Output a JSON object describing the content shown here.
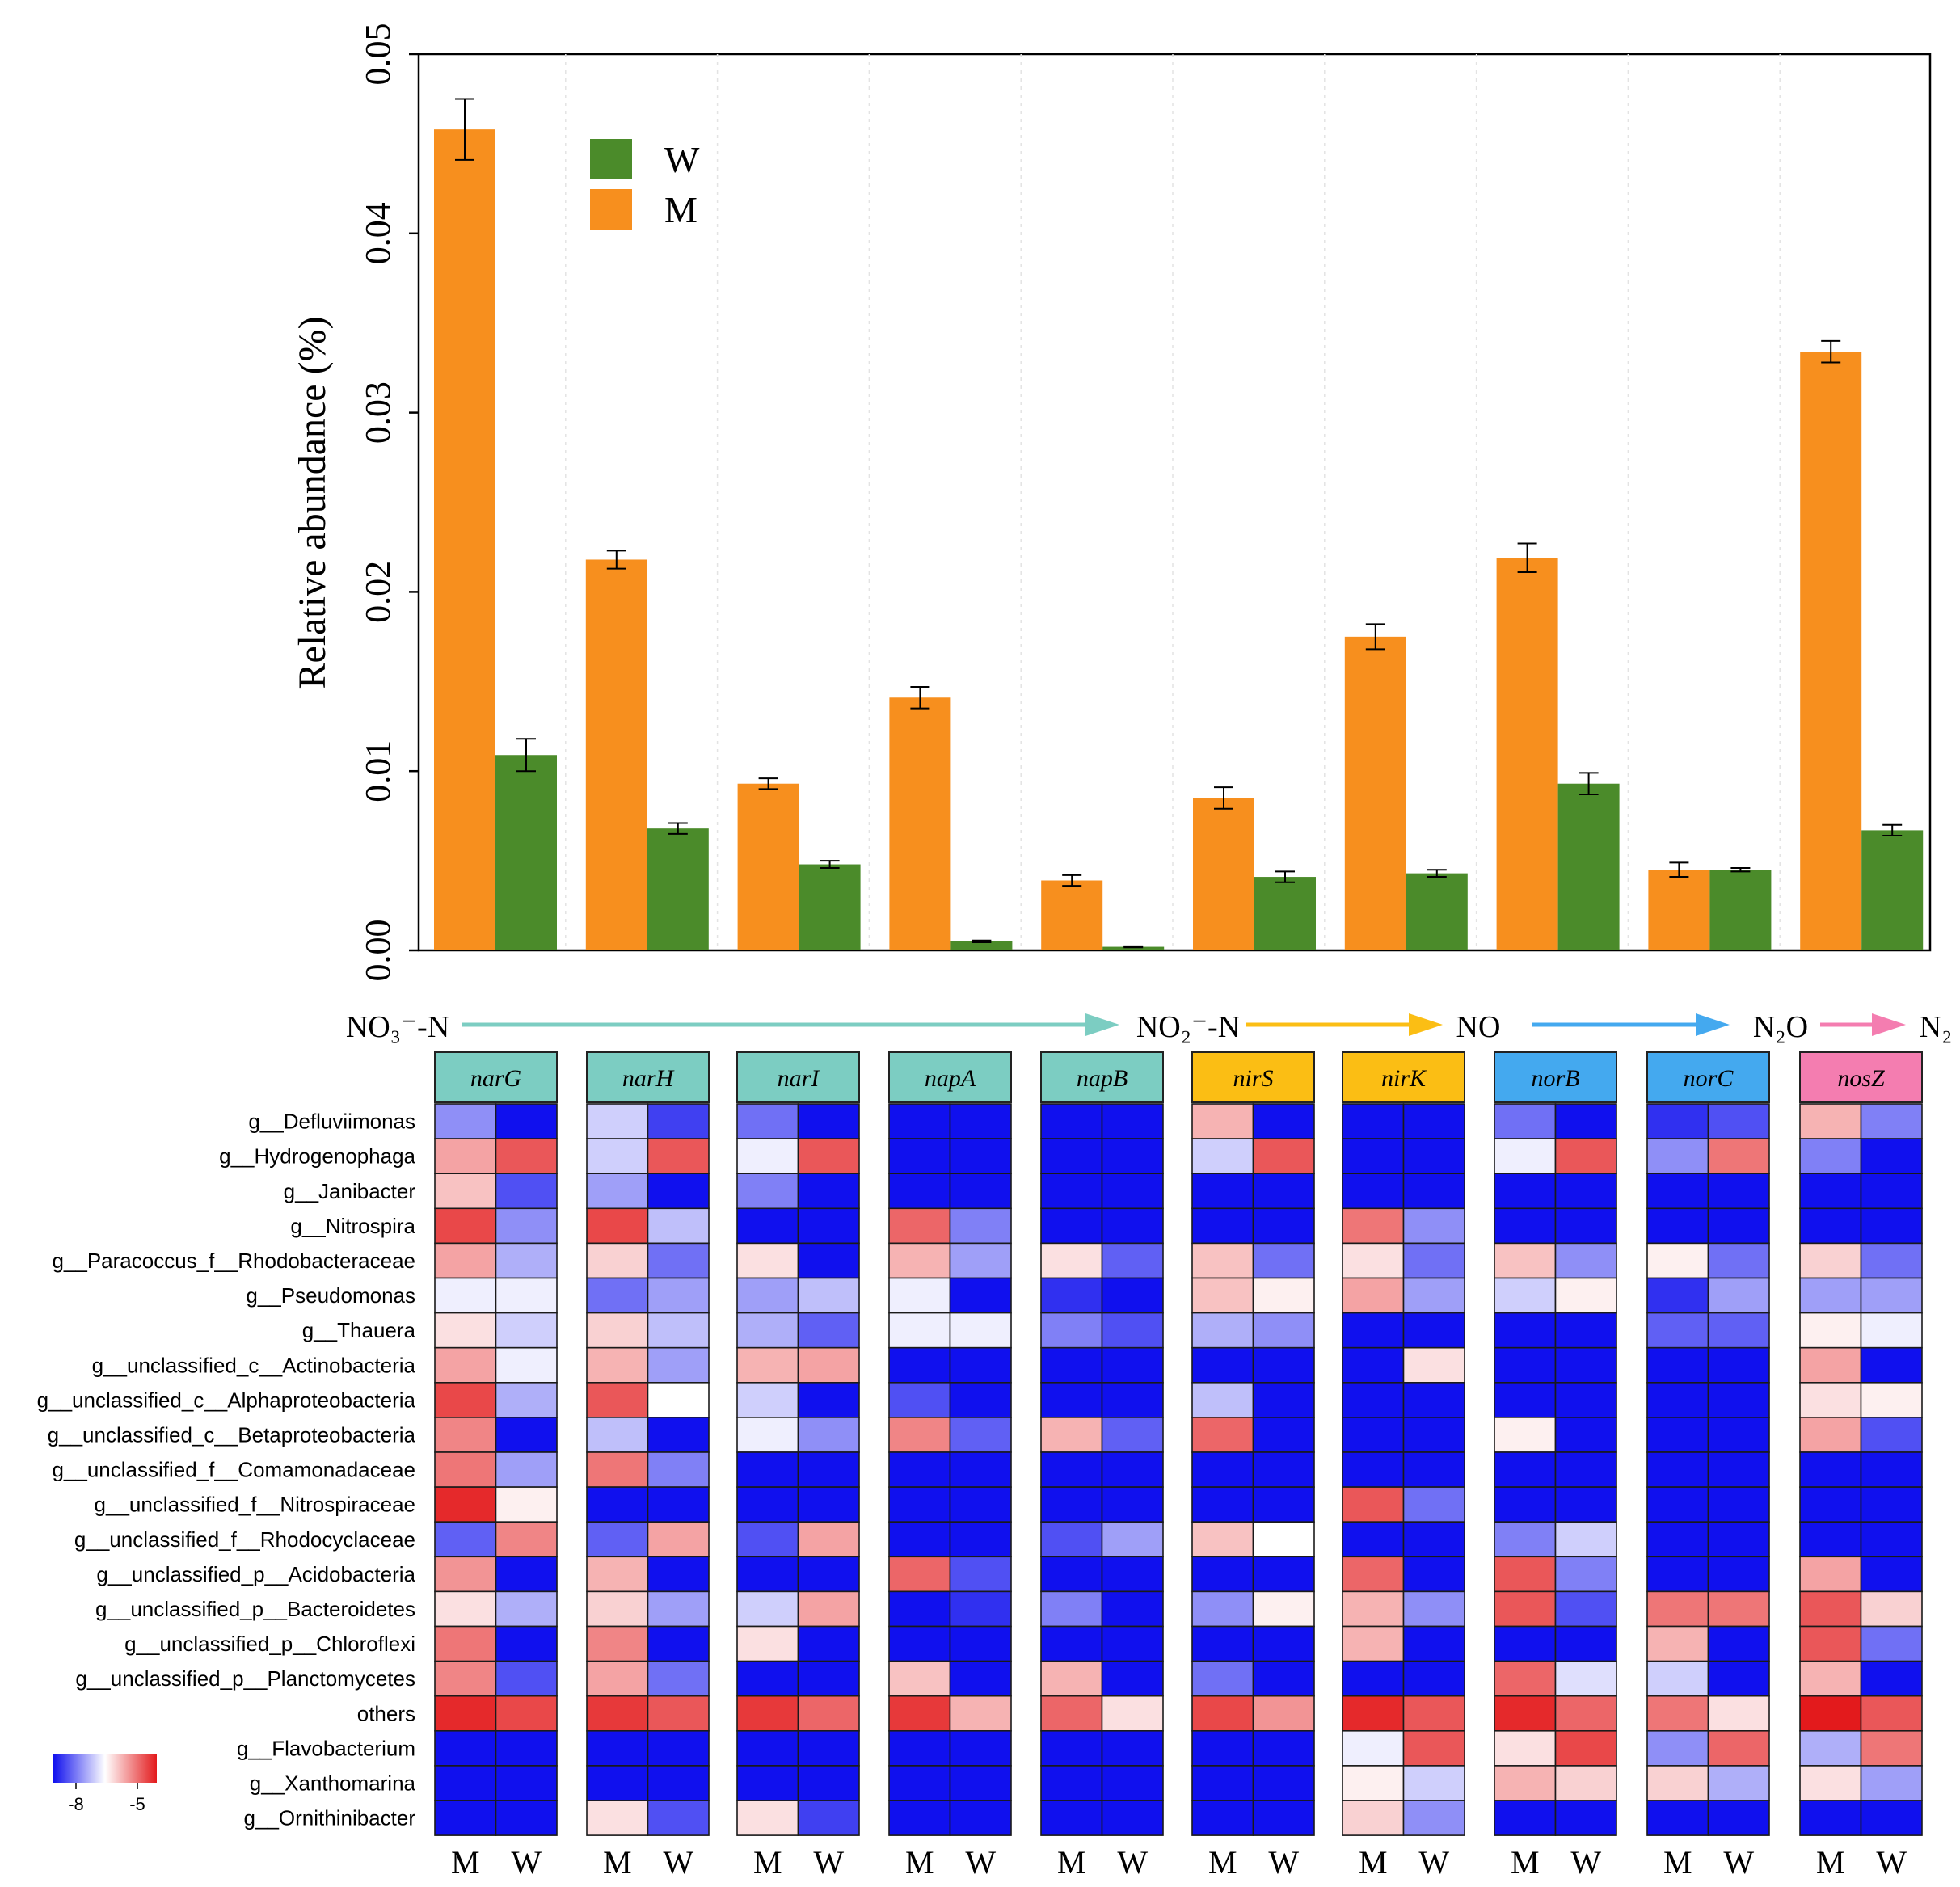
{
  "chart_data": [
    {
      "type": "bar",
      "ylabel": "Relative abundance (%)",
      "ylim": [
        0,
        0.05
      ],
      "yticks": [
        "0.00",
        "0.01",
        "0.02",
        "0.03",
        "0.04",
        "0.05"
      ],
      "categories": [
        "narG",
        "narH",
        "narI",
        "napA",
        "napB",
        "nirS",
        "nirK",
        "norB",
        "norC",
        "nosZ"
      ],
      "series": [
        {
          "name": "M",
          "color": "#f78f1e",
          "values": [
            0.0458,
            0.0218,
            0.0093,
            0.0141,
            0.0039,
            0.0085,
            0.0175,
            0.0219,
            0.0045,
            0.0334
          ],
          "errors": [
            0.0017,
            0.0005,
            0.0003,
            0.0006,
            0.0003,
            0.0006,
            0.0007,
            0.0008,
            0.0004,
            0.0006
          ]
        },
        {
          "name": "W",
          "color": "#4b8b2a",
          "values": [
            0.0109,
            0.0068,
            0.0048,
            0.0005,
            0.0002,
            0.0041,
            0.0043,
            0.0093,
            0.0045,
            0.0067
          ],
          "errors": [
            0.0009,
            0.0003,
            0.0002,
            5e-05,
            3e-05,
            0.0003,
            0.0002,
            0.0006,
            0.0001,
            0.0003
          ]
        }
      ],
      "legend": {
        "position": "top-left",
        "entries": [
          "W",
          "M"
        ]
      }
    },
    {
      "type": "heatmap",
      "genes": [
        {
          "label": "narG",
          "color": "#7ccdc2"
        },
        {
          "label": "narH",
          "color": "#7ccdc2"
        },
        {
          "label": "narI",
          "color": "#7ccdc2"
        },
        {
          "label": "napA",
          "color": "#7ccdc2"
        },
        {
          "label": "napB",
          "color": "#7ccdc2"
        },
        {
          "label": "nirS",
          "color": "#fbbe14"
        },
        {
          "label": "nirK",
          "color": "#fbbe14"
        },
        {
          "label": "norB",
          "color": "#44a9ef"
        },
        {
          "label": "norC",
          "color": "#44a9ef"
        },
        {
          "label": "nosZ",
          "color": "#f47db0"
        }
      ],
      "columns": [
        "M",
        "W"
      ],
      "rows": [
        "g__Defluviimonas",
        "g__Hydrogenophaga",
        "g__Janibacter",
        "g__Nitrospira",
        "g__Paracoccus_f__Rhodobacteraceae",
        "g__Pseudomonas",
        "g__Thauera",
        "g__unclassified_c__Actinobacteria",
        "g__unclassified_c__Alphaproteobacteria",
        "g__unclassified_c__Betaproteobacteria",
        "g__unclassified_f__Comamonadaceae",
        "g__unclassified_f__Nitrospiraceae",
        "g__unclassified_f__Rhodocyclaceae",
        "g__unclassified_p__Acidobacteria",
        "g__unclassified_p__Bacteroidetes",
        "g__unclassified_p__Chloroflexi",
        "g__unclassified_p__Planctomycetes",
        "others",
        "g__Flavobacterium",
        "g__Xanthomarina",
        "g__Ornithinibacter"
      ],
      "values": [
        [
          [
            -7.2,
            -8
          ],
          [
            -5.9,
            -5.4
          ],
          [
            -6.1,
            -7.6
          ],
          [
            -5.3,
            -7.2
          ],
          [
            -5.9,
            -7.0
          ],
          [
            -6.6,
            -6.6
          ],
          [
            -6.3,
            -6.8
          ],
          [
            -5.9,
            -6.6
          ],
          [
            -5.3,
            -7.0
          ],
          [
            -5.7,
            -8
          ],
          [
            -5.6,
            -7.1
          ],
          [
            -5.1,
            -6.4
          ],
          [
            -7.5,
            -5.7
          ],
          [
            -5.8,
            -8
          ],
          [
            -6.3,
            -7.0
          ],
          [
            -5.6,
            -8
          ],
          [
            -5.7,
            -7.6
          ],
          [
            -5.1,
            -5.3
          ],
          [
            -8,
            -8
          ],
          [
            -8,
            -8
          ],
          [
            -8,
            -8
          ]
        ],
        [
          [
            -6.8,
            -7.7
          ],
          [
            -6.8,
            -5.4
          ],
          [
            -7.1,
            -8
          ],
          [
            -5.3,
            -6.9
          ],
          [
            -6.2,
            -7.4
          ],
          [
            -7.4,
            -7.1
          ],
          [
            -6.2,
            -6.9
          ],
          [
            -6.0,
            -7.1
          ],
          [
            -5.4,
            -6.5
          ],
          [
            -6.9,
            -8
          ],
          [
            -5.6,
            -7.3
          ],
          [
            -8,
            -8
          ],
          [
            -7.5,
            -5.9
          ],
          [
            -6.0,
            -8
          ],
          [
            -6.2,
            -7.1
          ],
          [
            -5.7,
            -8
          ],
          [
            -5.9,
            -7.4
          ],
          [
            -5.2,
            -5.4
          ],
          [
            -8,
            -8
          ],
          [
            -8,
            -8
          ],
          [
            -6.3,
            -7.6
          ]
        ],
        [
          [
            -7.4,
            -8
          ],
          [
            -6.6,
            -5.4
          ],
          [
            -7.3,
            -8
          ],
          [
            -8,
            -8
          ],
          [
            -6.3,
            -8
          ],
          [
            -7.1,
            -6.9
          ],
          [
            -7.0,
            -7.5
          ],
          [
            -6.0,
            -5.9
          ],
          [
            -6.8,
            -8
          ],
          [
            -6.6,
            -7.2
          ],
          [
            -8,
            -8
          ],
          [
            -8,
            -8
          ],
          [
            -7.6,
            -5.9
          ],
          [
            -8,
            -8
          ],
          [
            -6.8,
            -5.9
          ],
          [
            -6.3,
            -8
          ],
          [
            -8,
            -8
          ],
          [
            -5.2,
            -5.5
          ],
          [
            -8,
            -8
          ],
          [
            -8,
            -8
          ],
          [
            -6.3,
            -7.7
          ]
        ],
        [
          [
            -8,
            -8
          ],
          [
            -8,
            -8
          ],
          [
            -8,
            -8
          ],
          [
            -5.5,
            -7.3
          ],
          [
            -6.0,
            -7.1
          ],
          [
            -6.6,
            -8
          ],
          [
            -6.6,
            -6.6
          ],
          [
            -8,
            -8
          ],
          [
            -7.6,
            -8
          ],
          [
            -5.7,
            -7.5
          ],
          [
            -8,
            -8
          ],
          [
            -8,
            -8
          ],
          [
            -8,
            -8
          ],
          [
            -5.5,
            -7.6
          ],
          [
            -8,
            -7.8
          ],
          [
            -8,
            -8
          ],
          [
            -6.1,
            -8
          ],
          [
            -5.2,
            -6.0
          ],
          [
            -8,
            -8
          ],
          [
            -8,
            -8
          ],
          [
            -8,
            -8
          ]
        ],
        [
          [
            -8,
            -8
          ],
          [
            -8,
            -8
          ],
          [
            -8,
            -8
          ],
          [
            -8,
            -8
          ],
          [
            -6.3,
            -7.5
          ],
          [
            -7.8,
            -8
          ],
          [
            -7.3,
            -7.6
          ],
          [
            -8,
            -8
          ],
          [
            -8,
            -8
          ],
          [
            -6.0,
            -7.5
          ],
          [
            -8,
            -8
          ],
          [
            -8,
            -8
          ],
          [
            -7.6,
            -7.1
          ],
          [
            -8,
            -8
          ],
          [
            -7.3,
            -8
          ],
          [
            -8,
            -8
          ],
          [
            -6.0,
            -8
          ],
          [
            -5.5,
            -6.3
          ],
          [
            -8,
            -8
          ],
          [
            -8,
            -8
          ],
          [
            -8,
            -8
          ]
        ],
        [
          [
            -6.0,
            -8
          ],
          [
            -6.8,
            -5.4
          ],
          [
            -8,
            -8
          ],
          [
            -8,
            -8
          ],
          [
            -6.1,
            -7.4
          ],
          [
            -6.1,
            -6.4
          ],
          [
            -7.0,
            -7.2
          ],
          [
            -8,
            -8
          ],
          [
            -6.9,
            -8
          ],
          [
            -5.5,
            -8
          ],
          [
            -8,
            -8
          ],
          [
            -8,
            -8
          ],
          [
            -6.1,
            -6.5
          ],
          [
            -8,
            -8
          ],
          [
            -7.2,
            -6.4
          ],
          [
            -8,
            -8
          ],
          [
            -7.4,
            -8
          ],
          [
            -5.3,
            -5.8
          ],
          [
            -8,
            -8
          ],
          [
            -8,
            -8
          ],
          [
            -8,
            -8
          ]
        ],
        [
          [
            -8,
            -8
          ],
          [
            -8,
            -8
          ],
          [
            -8,
            -8
          ],
          [
            -5.6,
            -7.2
          ],
          [
            -6.3,
            -7.4
          ],
          [
            -5.9,
            -7.1
          ],
          [
            -8,
            -8
          ],
          [
            -8,
            -6.3
          ],
          [
            -8,
            -8
          ],
          [
            -8,
            -8
          ],
          [
            -8,
            -8
          ],
          [
            -5.4,
            -7.4
          ],
          [
            -8,
            -8
          ],
          [
            -5.5,
            -8
          ],
          [
            -6.0,
            -7.2
          ],
          [
            -6.0,
            -8
          ],
          [
            -8,
            -8
          ],
          [
            -5.1,
            -5.4
          ],
          [
            -6.6,
            -5.4
          ],
          [
            -6.4,
            -6.8
          ],
          [
            -6.2,
            -7.2
          ]
        ],
        [
          [
            -7.4,
            -8
          ],
          [
            -6.6,
            -5.4
          ],
          [
            -8,
            -8
          ],
          [
            -8,
            -8
          ],
          [
            -6.1,
            -7.2
          ],
          [
            -6.8,
            -6.4
          ],
          [
            -8,
            -8
          ],
          [
            -8,
            -8
          ],
          [
            -8,
            -8
          ],
          [
            -6.4,
            -8
          ],
          [
            -8,
            -8
          ],
          [
            -8,
            -8
          ],
          [
            -7.3,
            -6.8
          ],
          [
            -5.4,
            -7.3
          ],
          [
            -5.4,
            -7.6
          ],
          [
            -8,
            -8
          ],
          [
            -5.5,
            -6.7
          ],
          [
            -5.1,
            -5.5
          ],
          [
            -6.3,
            -5.3
          ],
          [
            -6.0,
            -6.2
          ],
          [
            -8,
            -8
          ]
        ],
        [
          [
            -7.8,
            -7.6
          ],
          [
            -7.2,
            -5.6
          ],
          [
            -8,
            -8
          ],
          [
            -8,
            -8
          ],
          [
            -6.4,
            -7.4
          ],
          [
            -7.8,
            -7.1
          ],
          [
            -7.5,
            -7.5
          ],
          [
            -8,
            -8
          ],
          [
            -8,
            -8
          ],
          [
            -8,
            -8
          ],
          [
            -8,
            -8
          ],
          [
            -8,
            -8
          ],
          [
            -8,
            -8
          ],
          [
            -8,
            -8
          ],
          [
            -5.6,
            -5.6
          ],
          [
            -6.0,
            -8
          ],
          [
            -6.8,
            -8
          ],
          [
            -5.6,
            -6.3
          ],
          [
            -7.2,
            -5.5
          ],
          [
            -6.2,
            -7.0
          ],
          [
            -8,
            -8
          ]
        ],
        [
          [
            -6.0,
            -7.3
          ],
          [
            -7.3,
            -8
          ],
          [
            -8,
            -8
          ],
          [
            -8,
            -8
          ],
          [
            -6.2,
            -7.4
          ],
          [
            -7.1,
            -7.1
          ],
          [
            -6.4,
            -6.6
          ],
          [
            -5.9,
            -8
          ],
          [
            -6.3,
            -6.4
          ],
          [
            -5.9,
            -7.6
          ],
          [
            -8,
            -8
          ],
          [
            -8,
            -8
          ],
          [
            -8,
            -8
          ],
          [
            -5.9,
            -8
          ],
          [
            -5.4,
            -6.2
          ],
          [
            -5.4,
            -7.4
          ],
          [
            -6.0,
            -8
          ],
          [
            -4.9,
            -5.4
          ],
          [
            -7.0,
            -5.6
          ],
          [
            -6.3,
            -7.1
          ],
          [
            -8,
            -8
          ]
        ]
      ],
      "color_scale": {
        "min": -8,
        "max": -5,
        "colors": [
          "#1010ee",
          "#ffffff",
          "#e31a1c"
        ]
      },
      "legend_ticks": [
        "-8",
        "-5"
      ]
    }
  ],
  "pathway": {
    "nodes": [
      "NO₃⁻-N",
      "NO₂⁻-N",
      "NO",
      "N₂O",
      "N₂"
    ],
    "arrow_colors": [
      "#7ccdc2",
      "#fbbe14",
      "#44a9ef",
      "#f47db0"
    ]
  }
}
